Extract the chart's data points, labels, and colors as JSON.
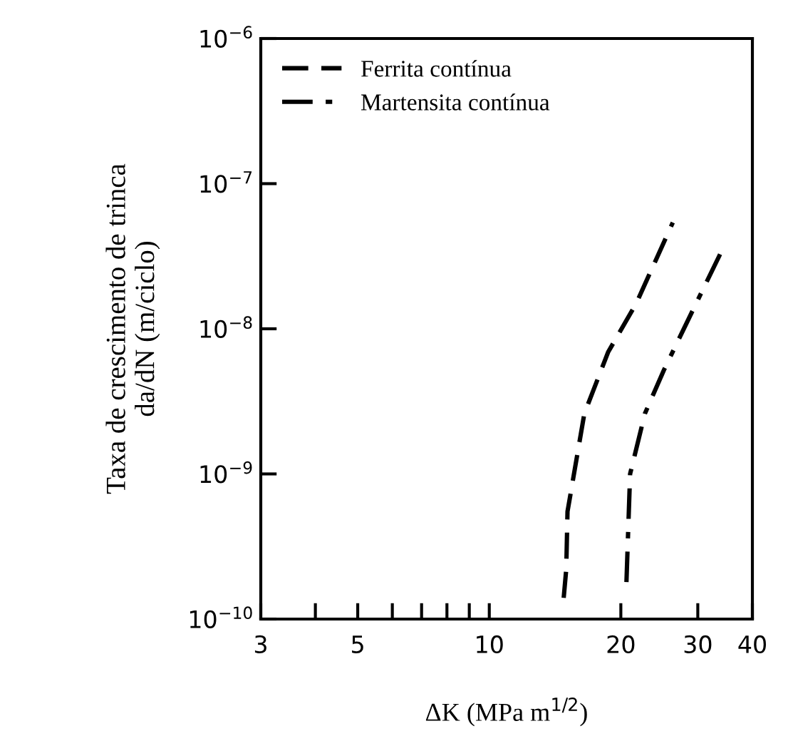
{
  "chart_data": {
    "type": "line",
    "xlabel": "ΔK (MPa m$^{1/2}$)",
    "ylabel": "Taxa de crescimento de trinca\nda/dN (m/ciclo)",
    "log": "xy",
    "xlim": [
      3,
      40
    ],
    "ylim": [
      1e-10,
      1e-06
    ],
    "xticks": [
      3,
      {
        "value": 4,
        "label": null
      },
      5,
      {
        "value": 6,
        "label": null
      },
      {
        "value": 7,
        "label": null
      },
      {
        "value": 8,
        "label": null
      },
      {
        "value": 9,
        "label": null
      },
      10,
      20,
      30,
      40
    ],
    "yticks": [
      {
        "value": 1e-10,
        "label": "10$^{−10}$"
      },
      {
        "value": 1e-09,
        "label": "10$^{−9}$"
      },
      {
        "value": 1e-08,
        "label": "10$^{−8}$"
      },
      {
        "value": 1e-07,
        "label": "10$^{−7}$"
      },
      {
        "value": 1e-06,
        "label": "10$^{−6}$"
      }
    ],
    "grid": false,
    "legend": "top left",
    "marker": "none",
    "series": [
      {
        "name": "Ferrita contínua",
        "color": "#000000",
        "line_style": "dashed",
        "x": [
          14.8,
          15.0,
          15.1,
          16.5,
          18.7,
          21.7,
          26.3
        ],
        "values": [
          1.4e-10,
          2.2e-10,
          5.5e-10,
          2.6e-09,
          6.9e-09,
          1.5e-08,
          5.4e-08
        ]
      },
      {
        "name": "Martensita contínua",
        "color": "#000000",
        "line_style": "dashdot",
        "x": [
          20.6,
          21.0,
          22.7,
          25.1,
          28.3,
          33.8
        ],
        "values": [
          1.8e-10,
          1e-09,
          2.6e-09,
          5.2e-09,
          1.1e-08,
          3.3e-08
        ]
      }
    ]
  }
}
